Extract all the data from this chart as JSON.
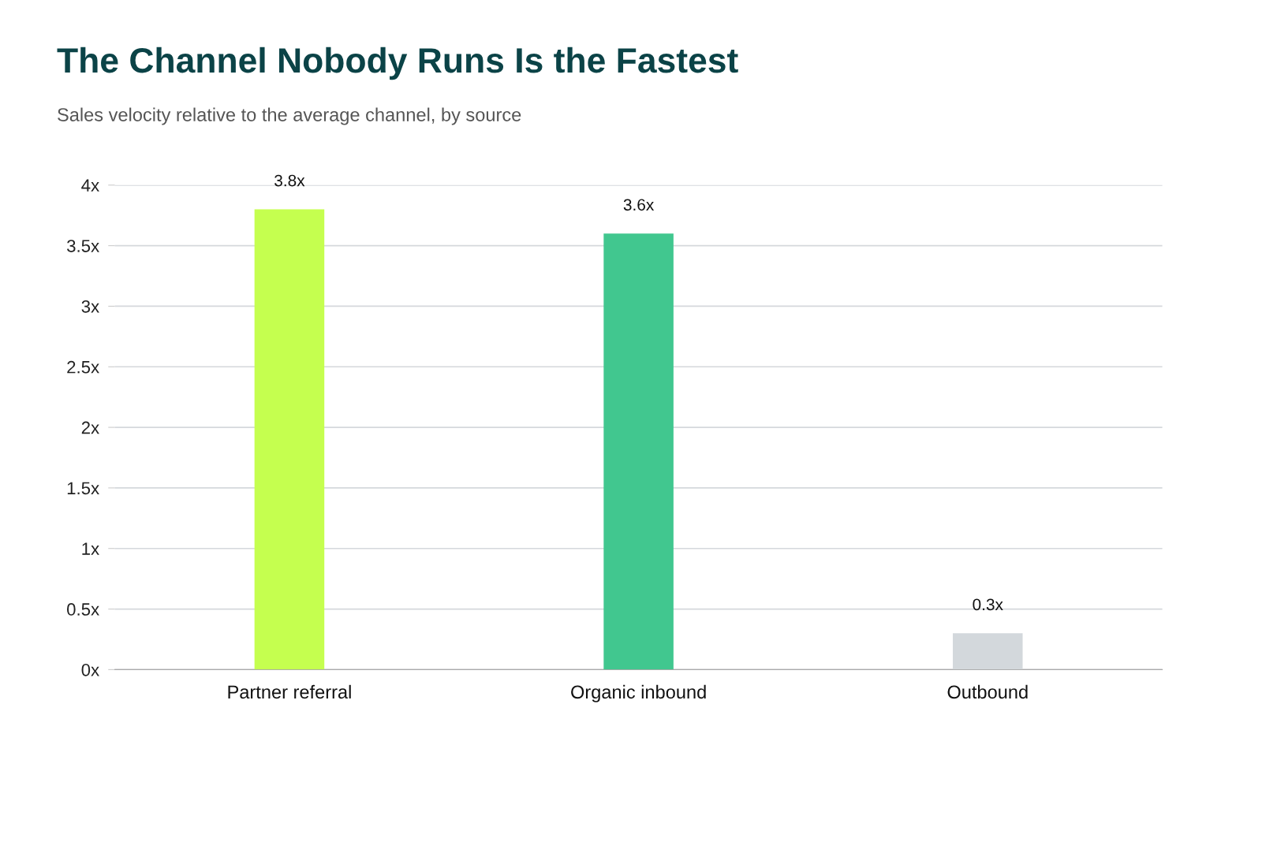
{
  "chart_data": {
    "type": "bar",
    "title": "The Channel Nobody Runs Is the Fastest",
    "subtitle": "Sales velocity relative to the average channel, by source",
    "categories": [
      "Partner referral",
      "Organic inbound",
      "Outbound"
    ],
    "values": [
      3.8,
      3.6,
      0.3
    ],
    "colors": [
      "#c5ff4f",
      "#41c78f",
      "#d3d8dc"
    ],
    "value_labels": [
      "3.8x",
      "3.6x",
      "0.3x"
    ],
    "ylim": [
      0,
      4
    ],
    "yticks": [
      {
        "value": 0,
        "label": "0x"
      },
      {
        "value": 0.5,
        "label": "0.5x"
      },
      {
        "value": 1,
        "label": "1x"
      },
      {
        "value": 1.5,
        "label": "1.5x"
      },
      {
        "value": 2,
        "label": "2x"
      },
      {
        "value": 2.5,
        "label": "2.5x"
      },
      {
        "value": 3,
        "label": "3x"
      },
      {
        "value": 3.5,
        "label": "3.5x"
      },
      {
        "value": 4,
        "label": "4x"
      }
    ],
    "grid": "y"
  }
}
